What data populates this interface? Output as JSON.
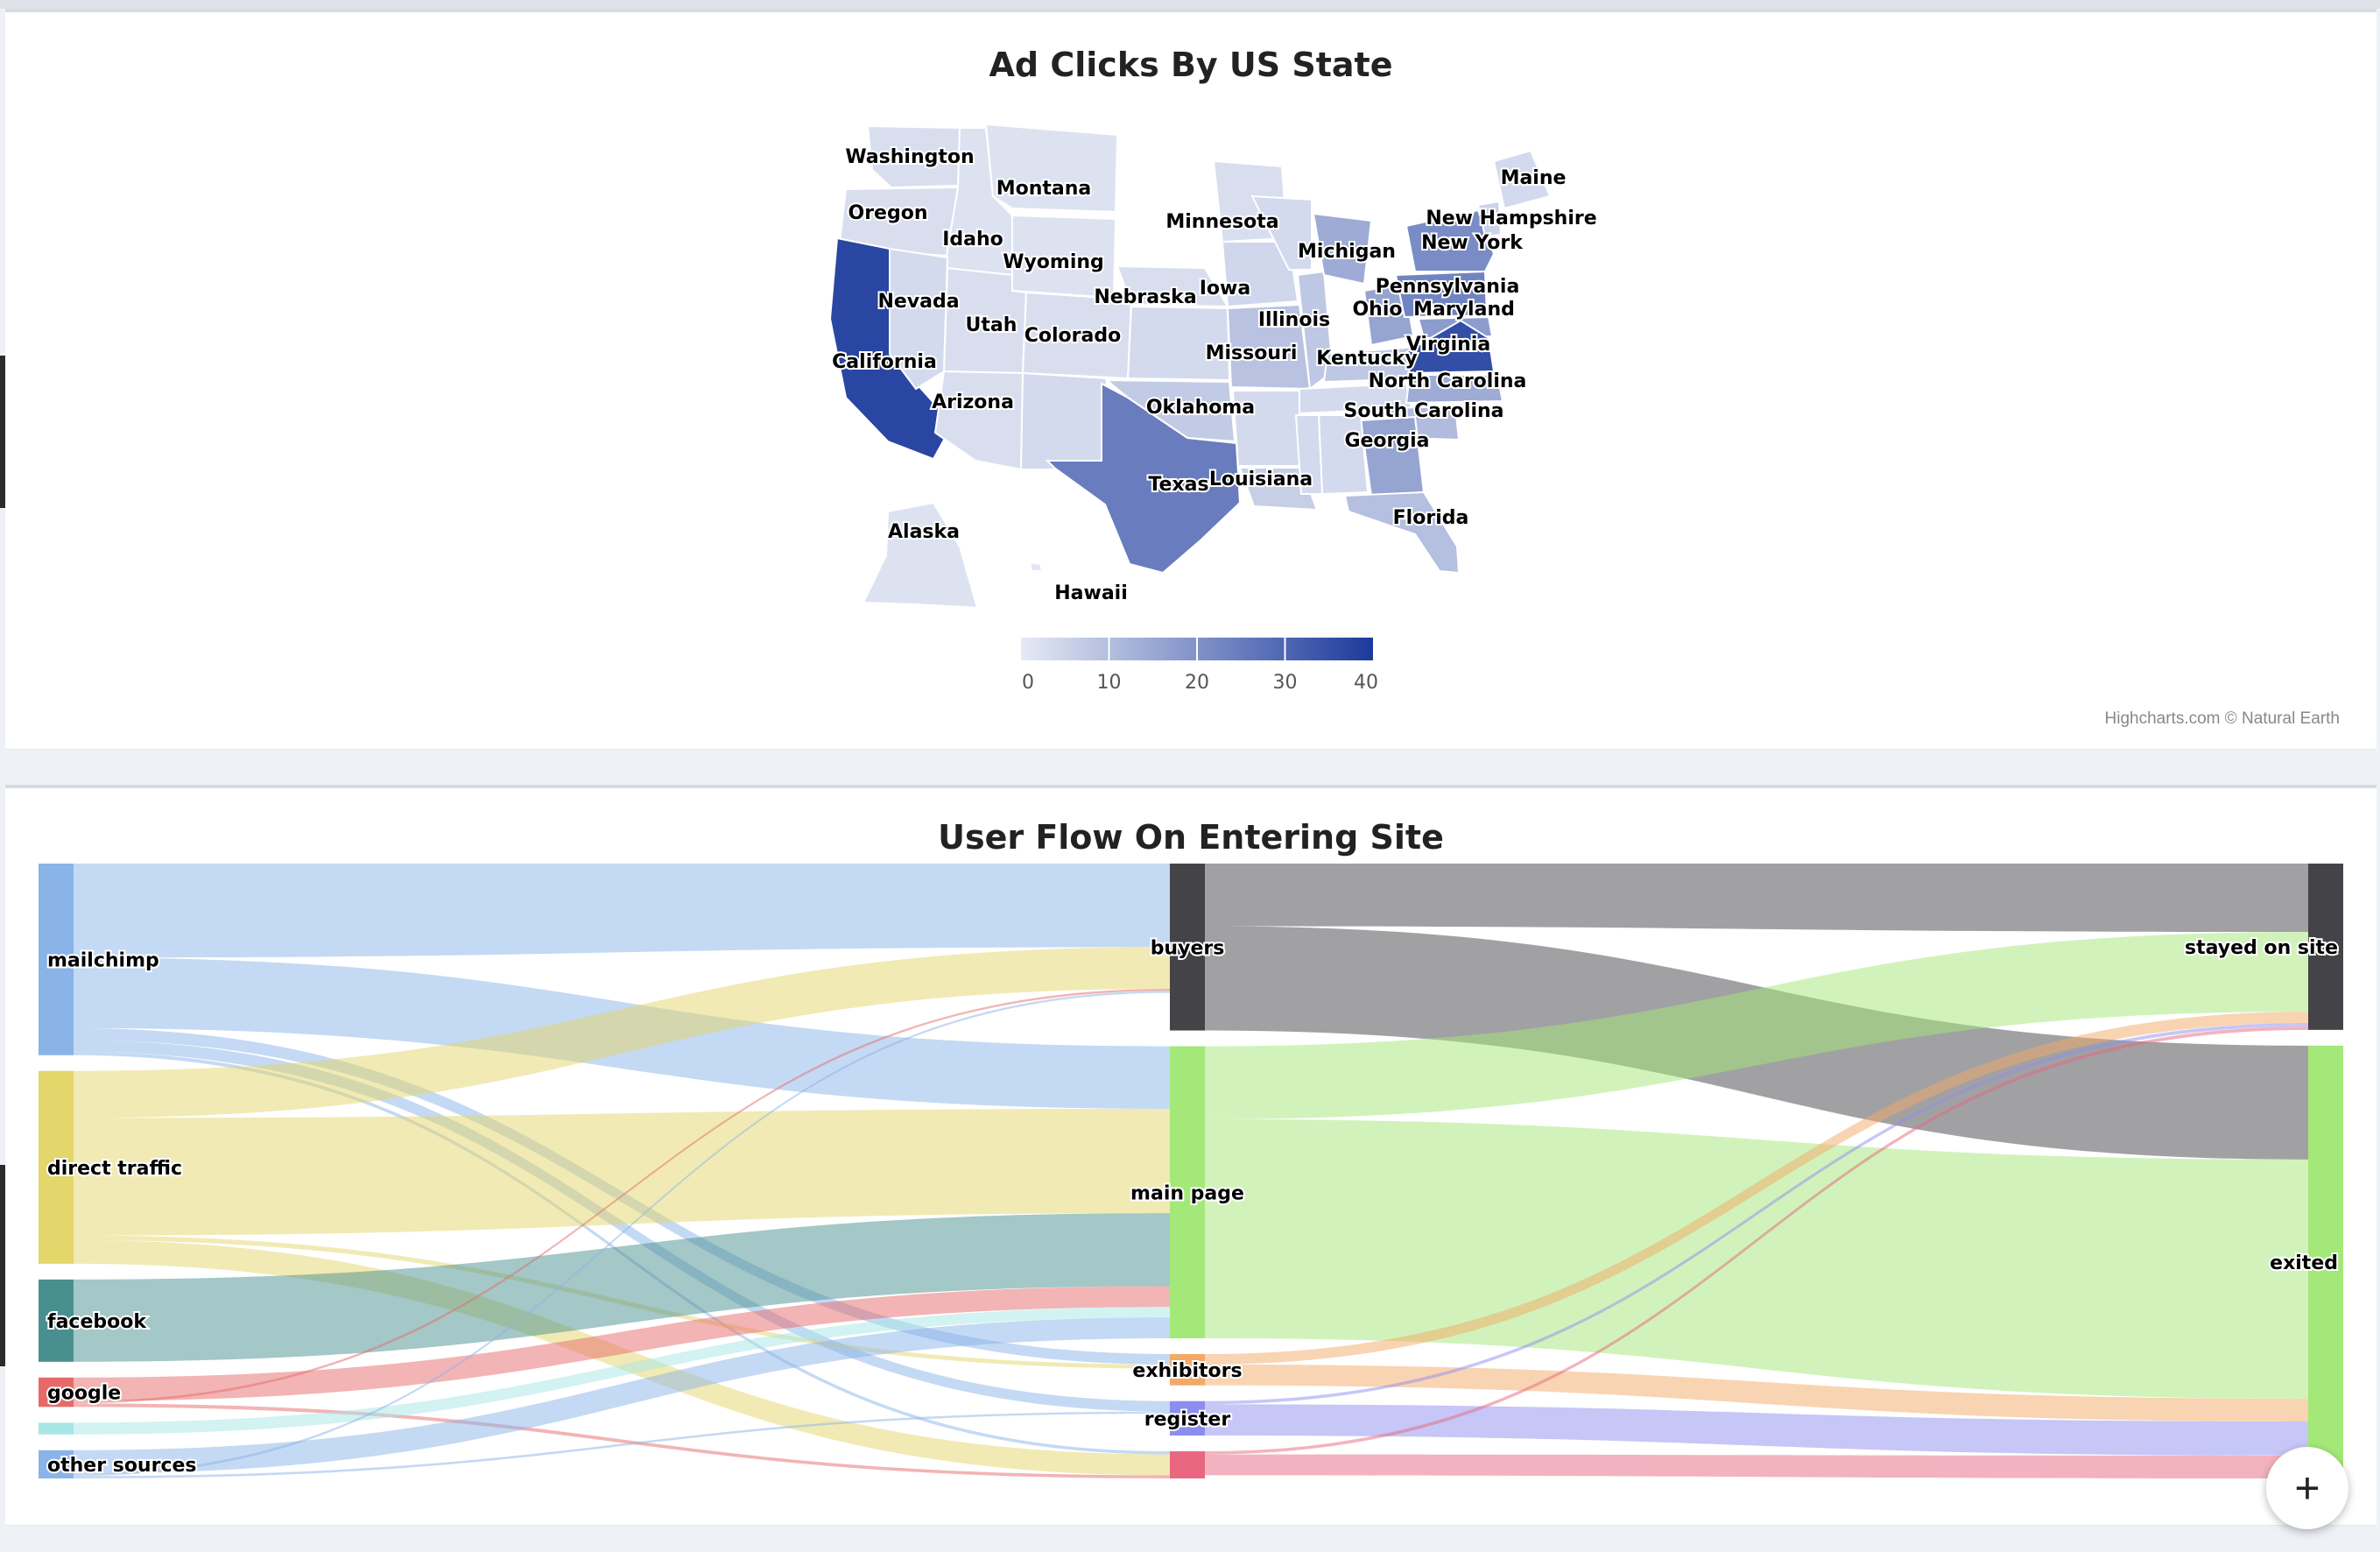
{
  "map_chart": {
    "title": "Ad Clicks By US State",
    "credit": "Highcharts.com © Natural Earth",
    "legend_ticks": [
      "0",
      "10",
      "20",
      "30",
      "40"
    ],
    "color_min": "#e6eaf5",
    "color_max": "#1c3a9c",
    "states": [
      {
        "name": "Washington",
        "value": 3
      },
      {
        "name": "Oregon",
        "value": 3
      },
      {
        "name": "Montana",
        "value": 2
      },
      {
        "name": "Idaho",
        "value": 2
      },
      {
        "name": "Wyoming",
        "value": 2
      },
      {
        "name": "Nevada",
        "value": 4
      },
      {
        "name": "Utah",
        "value": 3
      },
      {
        "name": "Colorado",
        "value": 3
      },
      {
        "name": "California",
        "value": 42
      },
      {
        "name": "Arizona",
        "value": 3
      },
      {
        "name": "Minnesota",
        "value": 3
      },
      {
        "name": "Iowa",
        "value": 5
      },
      {
        "name": "Nebraska",
        "value": 3
      },
      {
        "name": "Missouri",
        "value": 10
      },
      {
        "name": "Illinois",
        "value": 9
      },
      {
        "name": "Michigan",
        "value": 16
      },
      {
        "name": "Oklahoma",
        "value": 8
      },
      {
        "name": "Texas",
        "value": 28
      },
      {
        "name": "Louisiana",
        "value": 7
      },
      {
        "name": "Kentucky",
        "value": 9
      },
      {
        "name": "Ohio",
        "value": 18
      },
      {
        "name": "Pennsylvania",
        "value": 26
      },
      {
        "name": "New York",
        "value": 24
      },
      {
        "name": "Maine",
        "value": 4
      },
      {
        "name": "New Hampshire",
        "value": 6
      },
      {
        "name": "Maryland",
        "value": 20
      },
      {
        "name": "Virginia",
        "value": 40
      },
      {
        "name": "North Carolina",
        "value": 16
      },
      {
        "name": "South Carolina",
        "value": 12
      },
      {
        "name": "Georgia",
        "value": 18
      },
      {
        "name": "Florida",
        "value": 11
      },
      {
        "name": "Alaska",
        "value": 2
      },
      {
        "name": "Hawaii",
        "value": 1
      }
    ]
  },
  "sankey_chart": {
    "title": "User Flow On Entering Site",
    "nodes": [
      {
        "id": "mailchimp",
        "label": "mailchimp",
        "color": "#8ab4e8"
      },
      {
        "id": "direct",
        "label": "direct traffic",
        "color": "#e3d66a"
      },
      {
        "id": "facebook",
        "label": "facebook",
        "color": "#4a8f8f"
      },
      {
        "id": "google",
        "label": "google",
        "color": "#e66a6a"
      },
      {
        "id": "cyan",
        "label": "",
        "color": "#a8e6e6"
      },
      {
        "id": "other",
        "label": "other sources",
        "color": "#8ab4e8"
      },
      {
        "id": "buyers",
        "label": "buyers",
        "color": "#434348"
      },
      {
        "id": "main",
        "label": "main page",
        "color": "#a3e878"
      },
      {
        "id": "exhibitors",
        "label": "exhibitors",
        "color": "#f3a968"
      },
      {
        "id": "register",
        "label": "register",
        "color": "#8d8df0"
      },
      {
        "id": "pink",
        "label": "",
        "color": "#e8667f"
      },
      {
        "id": "stayed",
        "label": "stayed on site",
        "color": "#434348"
      },
      {
        "id": "exited",
        "label": "exited",
        "color": "#a3e878"
      }
    ],
    "links": [
      {
        "from": "mailchimp",
        "to": "buyers",
        "value": 8
      },
      {
        "from": "mailchimp",
        "to": "main",
        "value": 6
      },
      {
        "from": "mailchimp",
        "to": "exhibitors",
        "value": 1
      },
      {
        "from": "mailchimp",
        "to": "register",
        "value": 1
      },
      {
        "from": "mailchimp",
        "to": "pink",
        "value": 0.3
      },
      {
        "from": "direct",
        "to": "buyers",
        "value": 4
      },
      {
        "from": "direct",
        "to": "main",
        "value": 10
      },
      {
        "from": "direct",
        "to": "exhibitors",
        "value": 0.4
      },
      {
        "from": "direct",
        "to": "pink",
        "value": 2
      },
      {
        "from": "facebook",
        "to": "main",
        "value": 7
      },
      {
        "from": "google",
        "to": "main",
        "value": 2
      },
      {
        "from": "google",
        "to": "buyers",
        "value": 0.2
      },
      {
        "from": "google",
        "to": "pink",
        "value": 0.3
      },
      {
        "from": "cyan",
        "to": "main",
        "value": 1
      },
      {
        "from": "other",
        "to": "main",
        "value": 2
      },
      {
        "from": "other",
        "to": "buyers",
        "value": 0.2
      },
      {
        "from": "other",
        "to": "register",
        "value": 0.2
      },
      {
        "from": "buyers",
        "to": "stayed",
        "value": 6
      },
      {
        "from": "buyers",
        "to": "exited",
        "value": 10
      },
      {
        "from": "main",
        "to": "stayed",
        "value": 7
      },
      {
        "from": "main",
        "to": "exited",
        "value": 21
      },
      {
        "from": "exhibitors",
        "to": "stayed",
        "value": 1
      },
      {
        "from": "exhibitors",
        "to": "exited",
        "value": 2
      },
      {
        "from": "register",
        "to": "stayed",
        "value": 0.3
      },
      {
        "from": "register",
        "to": "exited",
        "value": 3
      },
      {
        "from": "pink",
        "to": "stayed",
        "value": 0.3
      },
      {
        "from": "pink",
        "to": "exited",
        "value": 2
      }
    ]
  },
  "fab_label": "+"
}
